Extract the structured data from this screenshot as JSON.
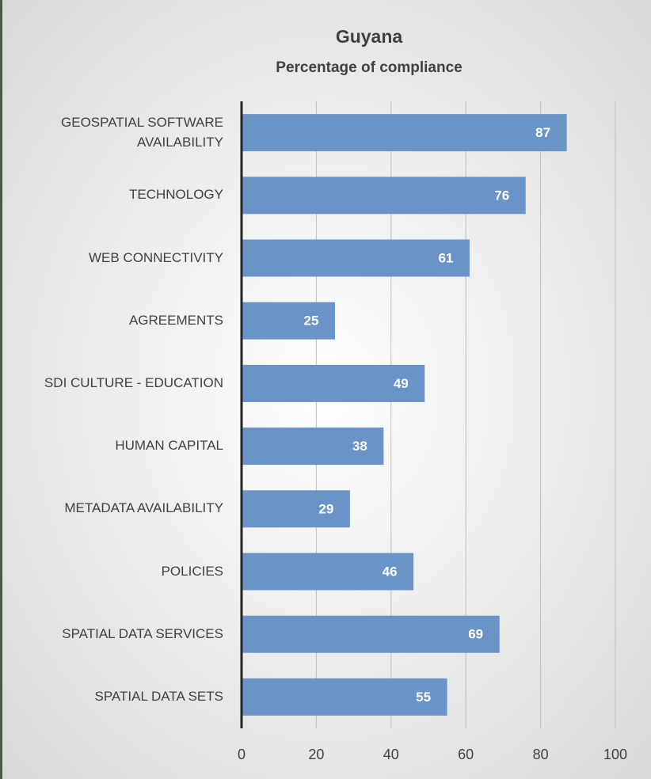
{
  "chart_data": {
    "type": "bar",
    "orientation": "horizontal",
    "title": "Guyana",
    "subtitle": "Percentage of compliance",
    "categories": [
      "GEOSPATIAL SOFTWARE AVAILABILITY",
      "TECHNOLOGY",
      "WEB CONNECTIVITY",
      "AGREEMENTS",
      "SDI CULTURE - EDUCATION",
      "HUMAN CAPITAL",
      "METADATA AVAILABILITY",
      "POLICIES",
      "SPATIAL DATA SERVICES",
      "SPATIAL DATA SETS"
    ],
    "values": [
      87,
      76,
      61,
      25,
      49,
      38,
      29,
      46,
      69,
      55
    ],
    "color": "#6a93c8",
    "xlim": [
      0,
      100
    ],
    "xticks": [
      0,
      20,
      40,
      60,
      80,
      100
    ],
    "grid": true
  }
}
